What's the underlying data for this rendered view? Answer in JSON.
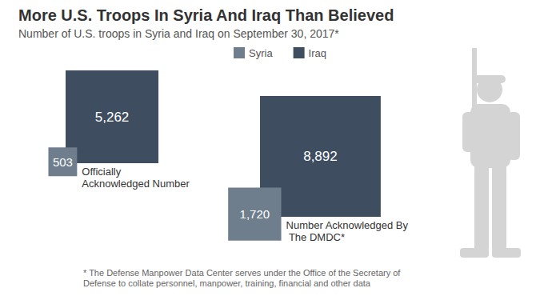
{
  "chart_data": {
    "type": "square_area",
    "title": "More U.S. Troops In Syria And Iraq Than Believed",
    "subtitle": "Number of U.S. troops in Syria and Iraq on September 30, 2017*",
    "categories": [
      "Officially Acknowledged Number",
      "Number Acknowledged By The DMDC*"
    ],
    "series": [
      {
        "name": "Syria",
        "color": "#6e7e8d",
        "values": [
          503,
          1720
        ]
      },
      {
        "name": "Iraq",
        "color": "#3e4e60",
        "values": [
          5262,
          8892
        ]
      }
    ],
    "data_labels": true,
    "legend": "top",
    "footnote": "* The Defense Manpower Data Center serves under the Office of the Secretary of Defense to collate personnel, manpower, training, financial and other data"
  }
}
